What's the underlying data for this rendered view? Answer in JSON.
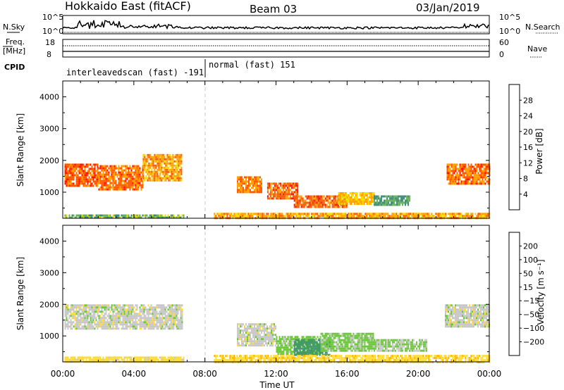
{
  "header": {
    "station": "Hokkaido East (fitACF)",
    "beam": "Beam 03",
    "date": "03/Jan/2019"
  },
  "left_labels": {
    "nsky": "N.Sky",
    "freq_line1": "Freq.",
    "freq_line2": "[MHz]",
    "cpid": "CPID"
  },
  "right_labels": {
    "nsearch": "N.Search",
    "nave": "Nave"
  },
  "ticks": {
    "noise_left": [
      "10^5",
      "10^0"
    ],
    "noise_right": [
      "10^5",
      "10^0"
    ],
    "freq_left": [
      "18",
      "8"
    ],
    "nave_right": [
      "60",
      "0"
    ]
  },
  "cpid_segments": [
    {
      "label": "interleavedscan (fast) -191",
      "start_hour": 0,
      "end_hour": 7.93
    },
    {
      "label": "normal (fast) 151",
      "start_hour": 7.93,
      "end_hour": 24
    }
  ],
  "power_colorbar": {
    "label": "Power [dB]",
    "ticks": [
      "4",
      "8",
      "12",
      "16",
      "20",
      "24",
      "28"
    ],
    "colors": [
      "#1414e6",
      "#1e46aa",
      "#3c8c78",
      "#64b45a",
      "#f0dc00",
      "#ffa000",
      "#ff5a00",
      "#ff1400"
    ]
  },
  "velocity_colorbar": {
    "label": "Velocity [m s⁻¹]",
    "ticks": [
      "200",
      "100",
      "50",
      "15",
      "−15",
      "−50",
      "−100",
      "−200"
    ],
    "colors": [
      "#1e1ea0",
      "#2850b4",
      "#3c966e",
      "#6ec83c",
      "#c8c8c8",
      "#ffdc3c",
      "#ffb400",
      "#ff7800",
      "#ff1e00"
    ]
  },
  "chart_data": [
    {
      "type": "heatmap",
      "name": "power",
      "ylabel": "Slant Range [km]",
      "xlim_hours": [
        0,
        24
      ],
      "ylim": [
        180,
        4500
      ],
      "y_ticks": [
        1000,
        2000,
        3000,
        4000
      ],
      "regions": [
        {
          "x0": 0.1,
          "x1": 2.0,
          "y0": 1200,
          "y1": 1900,
          "value": 26
        },
        {
          "x0": 2.0,
          "x1": 4.5,
          "y0": 1100,
          "y1": 1850,
          "value": 25
        },
        {
          "x0": 4.5,
          "x1": 6.7,
          "y0": 1400,
          "y1": 2200,
          "value": 22
        },
        {
          "x0": 0.1,
          "x1": 6.8,
          "y0": 180,
          "y1": 300,
          "value": 14
        },
        {
          "x0": 9.8,
          "x1": 11.2,
          "y0": 1000,
          "y1": 1500,
          "value": 24
        },
        {
          "x0": 11.5,
          "x1": 13.2,
          "y0": 800,
          "y1": 1300,
          "value": 25
        },
        {
          "x0": 13.0,
          "x1": 16.0,
          "y0": 550,
          "y1": 900,
          "value": 26
        },
        {
          "x0": 15.5,
          "x1": 17.5,
          "y0": 650,
          "y1": 1000,
          "value": 20
        },
        {
          "x0": 17.5,
          "x1": 19.5,
          "y0": 600,
          "y1": 900,
          "value": 12
        },
        {
          "x0": 21.6,
          "x1": 24.0,
          "y0": 1300,
          "y1": 1900,
          "value": 25
        },
        {
          "x0": 8.5,
          "x1": 24.0,
          "y0": 180,
          "y1": 350,
          "value": 22
        }
      ]
    },
    {
      "type": "heatmap",
      "name": "velocity",
      "ylabel": "Slant Range [km]",
      "xlabel": "Time UT",
      "xlim_hours": [
        0,
        24
      ],
      "ylim": [
        180,
        4500
      ],
      "y_ticks": [
        1000,
        2000,
        3000,
        4000
      ],
      "x_ticks": [
        "00:00",
        "04:00",
        "08:00",
        "12:00",
        "16:00",
        "20:00",
        "00:00"
      ],
      "regions": [
        {
          "x0": 0.1,
          "x1": 6.7,
          "y0": 1200,
          "y1": 2000,
          "value": 0
        },
        {
          "x0": 0.1,
          "x1": 6.8,
          "y0": 180,
          "y1": 350,
          "value": -30
        },
        {
          "x0": 9.8,
          "x1": 12.0,
          "y0": 700,
          "y1": 1400,
          "value": 0
        },
        {
          "x0": 12.0,
          "x1": 14.5,
          "y0": 450,
          "y1": 1000,
          "value": 30
        },
        {
          "x0": 13.0,
          "x1": 15.0,
          "y0": 400,
          "y1": 900,
          "value": 80
        },
        {
          "x0": 14.5,
          "x1": 17.5,
          "y0": 500,
          "y1": 1100,
          "value": 25
        },
        {
          "x0": 17.5,
          "x1": 20.5,
          "y0": 500,
          "y1": 900,
          "value": 20
        },
        {
          "x0": 21.5,
          "x1": 24.0,
          "y0": 1300,
          "y1": 2000,
          "value": 0
        },
        {
          "x0": 8.5,
          "x1": 24.0,
          "y0": 180,
          "y1": 400,
          "value": -40
        }
      ]
    }
  ]
}
